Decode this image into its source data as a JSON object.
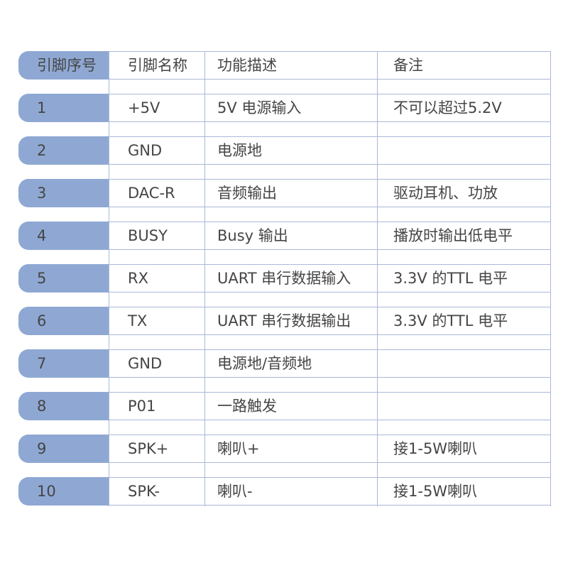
{
  "table": {
    "headers": [
      "引脚序号",
      "引脚名称",
      "功能描述",
      "备注"
    ],
    "rows": [
      [
        "1",
        "+5V",
        "5V 电源输入",
        "不可以超过5.2V"
      ],
      [
        "2",
        "GND",
        "电源地",
        ""
      ],
      [
        "3",
        "DAC-R",
        "音频输出",
        "驱动耳机、功放"
      ],
      [
        "4",
        "BUSY",
        "Busy 输出",
        "播放时输出低电平"
      ],
      [
        "5",
        "RX",
        "UART 串行数据输入",
        "3.3V 的TTL 电平"
      ],
      [
        "6",
        "TX",
        "UART 串行数据输出",
        "3.3V 的TTL 电平"
      ],
      [
        "7",
        "GND",
        "电源地/音频地",
        ""
      ],
      [
        "8",
        "P01",
        "一路触发",
        ""
      ],
      [
        "9",
        "SPK+",
        "喇叭+",
        "接1-5W喇叭"
      ],
      [
        "10",
        "SPK-",
        "喇叭-",
        "接1-5W喇叭"
      ]
    ]
  },
  "colors": {
    "accent": "#8fa8d3",
    "grid": "#aab9d8",
    "text": "#454545"
  }
}
